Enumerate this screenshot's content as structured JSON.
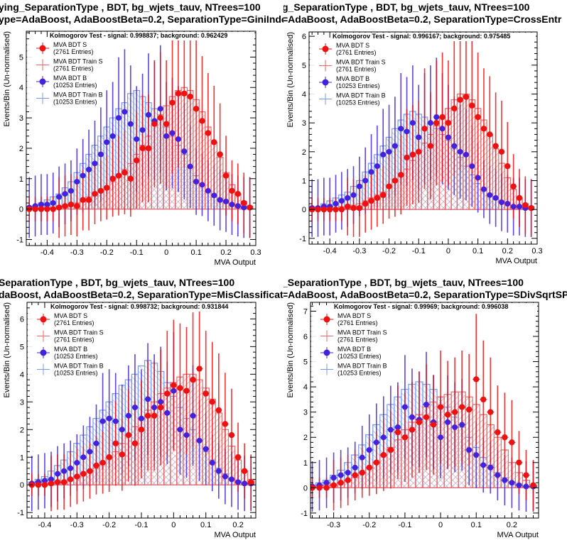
{
  "colors": {
    "signal": "#ee1111",
    "signal_train": "#ee6666",
    "background": "#4422dd",
    "background_train": "#7799ee",
    "overlap": "#8822aa"
  },
  "legend": [
    {
      "label": "MVA BDT S",
      "entries": "(2761 Entries)",
      "kind": "sig"
    },
    {
      "label": "MVA BDT Train S",
      "entries": "(2761 Entries)",
      "kind": "sigtrain"
    },
    {
      "label": "MVA BDT B",
      "entries": "(10253 Entries)",
      "kind": "bkg"
    },
    {
      "label": "MVA BDT Train B",
      "entries": "(10253 Entries)",
      "kind": "bkgtrain"
    }
  ],
  "panels": [
    {
      "title1": "ying_SeparationType ,  BDT, bg_wjets_tauv, NTrees=100",
      "title2": "ype=AdaBoost, AdaBoostBeta=0.2, SeparationType=GiniInde",
      "ks": "Kolmogorov Test - signal: 0.998837; background: 0.962429",
      "xlabel": "MVA Output",
      "ylabel": "Events/Bin (Un-normalised)"
    },
    {
      "title1": "g_SeparationType ,  BDT, bg_wjets_tauv, NTrees=100",
      "title2": "=AdaBoost, AdaBoostBeta=0.2, SeparationType=CrossEntr",
      "ks": "Kolmogorov Test - signal: 0.996167; background: 0.975485",
      "xlabel": "MVA Output",
      "ylabel": "Events/Bin (Un-normalised)"
    },
    {
      "title1": "SeparationType ,  BDT, bg_wjets_tauv, NTrees=100",
      "title2": "daBoost, AdaBoostBeta=0.2, SeparationType=MisClassificati",
      "ks": "Kolmogorov Test - signal: 0.998732; background: 0.931844",
      "xlabel": "MVA Output",
      "ylabel": "Events/Bin (Un-normalised)"
    },
    {
      "title1": "_SeparationType ,  BDT, bg_wjets_tauv, NTrees=100",
      "title2": "=AdaBoost, AdaBoostBeta=0.2, SeparationType=SDivSqrtSP",
      "ks": "Kolmogorov Test - signal: 0.99969; background: 0.996038",
      "xlabel": "MVA Output",
      "ylabel": "Events/Bin (Un-normalised)"
    }
  ],
  "chart_data": [
    {
      "type": "histogram",
      "xlabel": "MVA Output",
      "ylabel": "Events/Bin (Un-normalised)",
      "xlim": [
        -0.47,
        0.3
      ],
      "ylim": [
        -1.2,
        5.85
      ],
      "xticks": [
        -0.4,
        -0.3,
        -0.2,
        -0.1,
        0,
        0.1,
        0.2,
        0.3
      ],
      "yticks": [
        -1,
        0,
        1,
        2,
        3,
        4,
        5
      ],
      "x": [
        -0.46,
        -0.44,
        -0.42,
        -0.4,
        -0.38,
        -0.36,
        -0.34,
        -0.32,
        -0.3,
        -0.28,
        -0.26,
        -0.24,
        -0.22,
        -0.2,
        -0.18,
        -0.16,
        -0.14,
        -0.12,
        -0.1,
        -0.08,
        -0.06,
        -0.04,
        -0.02,
        0.0,
        0.02,
        0.04,
        0.06,
        0.08,
        0.1,
        0.12,
        0.14,
        0.16,
        0.18,
        0.2,
        0.22,
        0.24,
        0.26,
        0.28
      ],
      "series": [
        {
          "name": "MVA BDT S",
          "values": [
            0,
            0,
            0,
            0,
            0,
            0.05,
            0.1,
            0.15,
            0.1,
            0.3,
            0.3,
            0.5,
            0.6,
            0.7,
            1.0,
            1.1,
            1.2,
            1.0,
            1.6,
            2.0,
            2.0,
            2.8,
            3.0,
            2.8,
            3.5,
            3.8,
            3.8,
            3.7,
            3.3,
            2.9,
            2.5,
            2.2,
            1.8,
            1.1,
            0.6,
            0.5,
            0.2,
            0.05
          ]
        },
        {
          "name": "MVA BDT Train S",
          "values": [
            0,
            0,
            0,
            0.05,
            0.05,
            0.1,
            0.1,
            0.15,
            0.2,
            0.3,
            0.4,
            0.5,
            0.6,
            0.7,
            0.9,
            1.1,
            1.3,
            1.5,
            1.8,
            2.1,
            2.4,
            2.8,
            3.1,
            3.4,
            3.7,
            3.9,
            4.0,
            3.9,
            3.6,
            3.2,
            2.7,
            2.2,
            1.7,
            1.2,
            0.8,
            0.5,
            0.25,
            0.1
          ]
        },
        {
          "name": "MVA BDT B",
          "values": [
            0.05,
            0.1,
            0.15,
            0.15,
            0.2,
            0.4,
            0.5,
            0.6,
            0.9,
            1.1,
            1.3,
            1.5,
            1.8,
            2.2,
            2.4,
            3.0,
            3.2,
            2.8,
            2.3,
            2.6,
            3.1,
            2.9,
            3.3,
            2.4,
            2.5,
            2.3,
            1.9,
            1.4,
            0.9,
            0.8,
            0.6,
            0.45,
            0.3,
            0.25,
            0.15,
            0.1,
            0.05,
            0.05
          ]
        },
        {
          "name": "MVA BDT Train B",
          "values": [
            0.05,
            0.1,
            0.2,
            0.3,
            0.4,
            0.5,
            0.7,
            0.9,
            1.2,
            1.5,
            1.8,
            2.1,
            2.4,
            2.7,
            3.0,
            3.3,
            3.5,
            3.8,
            3.9,
            3.7,
            3.5,
            3.3,
            3.0,
            2.7,
            2.4,
            2.1,
            1.8,
            1.4,
            1.1,
            0.8,
            0.6,
            0.4,
            0.3,
            0.2,
            0.15,
            0.1,
            0.05,
            0.03
          ]
        }
      ]
    },
    {
      "type": "histogram",
      "xlabel": "MVA Output",
      "ylabel": "Events/Bin (Un-normalised)",
      "xlim": [
        -0.47,
        0.3
      ],
      "ylim": [
        -1.2,
        6.15
      ],
      "xticks": [
        -0.4,
        -0.3,
        -0.2,
        -0.1,
        0,
        0.1,
        0.2,
        0.3
      ],
      "yticks": [
        -1,
        0,
        1,
        2,
        3,
        4,
        5,
        6
      ],
      "x": [
        -0.46,
        -0.44,
        -0.42,
        -0.4,
        -0.38,
        -0.36,
        -0.34,
        -0.32,
        -0.3,
        -0.28,
        -0.26,
        -0.24,
        -0.22,
        -0.2,
        -0.18,
        -0.16,
        -0.14,
        -0.12,
        -0.1,
        -0.08,
        -0.06,
        -0.04,
        -0.02,
        0.0,
        0.02,
        0.04,
        0.06,
        0.08,
        0.1,
        0.12,
        0.14,
        0.16,
        0.18,
        0.2,
        0.22,
        0.24,
        0.26,
        0.28
      ],
      "series": [
        {
          "name": "MVA BDT S",
          "values": [
            0,
            0,
            0,
            0,
            0,
            0,
            0.1,
            0.05,
            0.05,
            0.2,
            0.3,
            0.4,
            0.5,
            0.8,
            1.0,
            1.2,
            1.8,
            1.9,
            2.0,
            2.8,
            2.2,
            3.0,
            3.2,
            3.0,
            3.5,
            3.8,
            3.9,
            3.6,
            3.2,
            2.8,
            2.6,
            2.2,
            2.0,
            1.5,
            0.8,
            0.4,
            0.15,
            0.05
          ]
        },
        {
          "name": "MVA BDT Train S",
          "values": [
            0,
            0,
            0,
            0.05,
            0.05,
            0.1,
            0.1,
            0.15,
            0.2,
            0.3,
            0.4,
            0.5,
            0.6,
            0.8,
            1.0,
            1.2,
            1.4,
            1.7,
            2.0,
            2.3,
            2.6,
            2.9,
            3.2,
            3.5,
            3.8,
            4.0,
            4.0,
            3.8,
            3.5,
            3.1,
            2.6,
            2.1,
            1.6,
            1.1,
            0.7,
            0.4,
            0.2,
            0.1
          ]
        },
        {
          "name": "MVA BDT B",
          "values": [
            0.05,
            0.05,
            0.1,
            0.1,
            0.2,
            0.3,
            0.4,
            0.5,
            0.8,
            1.0,
            1.3,
            1.5,
            1.9,
            2.0,
            2.2,
            2.8,
            2.7,
            3.0,
            2.5,
            2.8,
            3.0,
            3.2,
            2.8,
            2.5,
            2.2,
            2.0,
            1.9,
            1.5,
            1.1,
            0.7,
            0.5,
            0.4,
            0.25,
            0.2,
            0.1,
            0.1,
            0.05,
            0.05
          ]
        },
        {
          "name": "MVA BDT Train B",
          "values": [
            0.05,
            0.1,
            0.2,
            0.3,
            0.4,
            0.5,
            0.6,
            0.8,
            1.0,
            1.3,
            1.6,
            1.9,
            2.2,
            2.5,
            2.8,
            3.1,
            3.3,
            3.4,
            3.3,
            3.2,
            3.0,
            2.8,
            2.6,
            2.4,
            2.1,
            1.8,
            1.5,
            1.2,
            0.9,
            0.7,
            0.5,
            0.35,
            0.25,
            0.15,
            0.1,
            0.05,
            0.03,
            0.02
          ]
        }
      ]
    },
    {
      "type": "histogram",
      "xlabel": "MVA Output",
      "ylabel": "Events/Bin (Un-normalised)",
      "xlim": [
        -0.455,
        0.255
      ],
      "ylim": [
        -1.2,
        6.6
      ],
      "xticks": [
        -0.4,
        -0.3,
        -0.2,
        -0.1,
        0,
        0.1,
        0.2
      ],
      "yticks": [
        -1,
        0,
        1,
        2,
        3,
        4,
        5,
        6
      ],
      "x": [
        -0.44,
        -0.42,
        -0.4,
        -0.38,
        -0.36,
        -0.34,
        -0.32,
        -0.3,
        -0.28,
        -0.26,
        -0.24,
        -0.22,
        -0.2,
        -0.18,
        -0.16,
        -0.14,
        -0.12,
        -0.1,
        -0.08,
        -0.06,
        -0.04,
        -0.02,
        0.0,
        0.02,
        0.04,
        0.06,
        0.08,
        0.1,
        0.12,
        0.14,
        0.16,
        0.18,
        0.2,
        0.22,
        0.24
      ],
      "series": [
        {
          "name": "MVA BDT S",
          "values": [
            0,
            0,
            0,
            0.05,
            0.1,
            0.1,
            0.2,
            0.3,
            0.4,
            0.5,
            0.7,
            0.8,
            1.0,
            1.5,
            1.1,
            1.8,
            1.5,
            2.0,
            2.5,
            2.5,
            2.8,
            3.3,
            3.6,
            3.5,
            3.4,
            3.8,
            4.2,
            3.3,
            3.0,
            2.7,
            2.2,
            1.8,
            1.0,
            0.5,
            0.1
          ]
        },
        {
          "name": "MVA BDT Train S",
          "values": [
            0,
            0,
            0.05,
            0.05,
            0.1,
            0.1,
            0.2,
            0.3,
            0.4,
            0.5,
            0.6,
            0.8,
            1.0,
            1.2,
            1.5,
            1.8,
            2.1,
            2.4,
            2.7,
            3.0,
            3.3,
            3.5,
            3.7,
            3.9,
            4.0,
            4.0,
            3.8,
            3.5,
            3.1,
            2.6,
            2.0,
            1.4,
            0.9,
            0.5,
            0.2
          ]
        },
        {
          "name": "MVA BDT B",
          "values": [
            0.05,
            0.1,
            0.15,
            0.2,
            0.4,
            0.5,
            0.6,
            0.8,
            1.0,
            1.2,
            1.5,
            2.3,
            2.4,
            2.3,
            2.0,
            2.5,
            2.8,
            2.4,
            3.1,
            2.8,
            3.0,
            2.6,
            3.4,
            2.0,
            1.8,
            2.5,
            1.6,
            1.3,
            0.8,
            0.5,
            0.3,
            0.2,
            0.1,
            0.05,
            0.05
          ]
        },
        {
          "name": "MVA BDT Train B",
          "values": [
            0.1,
            0.2,
            0.3,
            0.5,
            0.7,
            0.9,
            1.2,
            1.5,
            1.8,
            2.1,
            2.4,
            2.7,
            3.0,
            3.3,
            3.6,
            3.8,
            4.0,
            4.3,
            4.5,
            4.4,
            4.1,
            3.7,
            3.2,
            2.8,
            2.4,
            2.0,
            1.6,
            1.2,
            0.9,
            0.6,
            0.4,
            0.25,
            0.15,
            0.08,
            0.04
          ]
        }
      ]
    },
    {
      "type": "histogram",
      "xlabel": "MVA Output",
      "ylabel": "Events/Bin (Un-normalised)",
      "xlim": [
        -0.365,
        0.275
      ],
      "ylim": [
        -1.2,
        7.35
      ],
      "xticks": [
        -0.3,
        -0.2,
        -0.1,
        0,
        0.1,
        0.2
      ],
      "yticks": [
        -1,
        0,
        1,
        2,
        3,
        4,
        5,
        6,
        7
      ],
      "x": [
        -0.36,
        -0.34,
        -0.32,
        -0.3,
        -0.28,
        -0.26,
        -0.24,
        -0.22,
        -0.2,
        -0.18,
        -0.16,
        -0.14,
        -0.12,
        -0.1,
        -0.08,
        -0.06,
        -0.04,
        -0.02,
        0.0,
        0.02,
        0.04,
        0.06,
        0.08,
        0.1,
        0.12,
        0.14,
        0.16,
        0.18,
        0.2,
        0.22,
        0.24,
        0.26
      ],
      "series": [
        {
          "name": "MVA BDT S",
          "values": [
            0,
            0,
            0,
            0.1,
            0.2,
            0.3,
            0.5,
            0.6,
            0.8,
            1.0,
            1.3,
            1.5,
            2.2,
            2.0,
            2.3,
            2.6,
            2.8,
            2.5,
            3.2,
            2.9,
            3.0,
            3.2,
            3.1,
            4.3,
            3.5,
            3.0,
            2.2,
            2.0,
            1.8,
            1.0,
            0.5,
            0.1
          ]
        },
        {
          "name": "MVA BDT Train S",
          "values": [
            0,
            0.05,
            0.1,
            0.15,
            0.2,
            0.3,
            0.4,
            0.6,
            0.8,
            1.0,
            1.3,
            1.6,
            1.9,
            2.3,
            2.6,
            2.9,
            3.2,
            3.4,
            3.6,
            3.7,
            3.8,
            3.8,
            3.6,
            3.3,
            2.9,
            2.5,
            2.0,
            1.5,
            1.0,
            0.6,
            0.3,
            0.1
          ]
        },
        {
          "name": "MVA BDT B",
          "values": [
            0.05,
            0.1,
            0.2,
            0.4,
            0.5,
            0.6,
            0.8,
            1.2,
            1.5,
            1.8,
            2.0,
            2.3,
            2.4,
            3.2,
            2.8,
            2.7,
            3.3,
            2.6,
            2.0,
            2.6,
            2.4,
            2.5,
            1.5,
            1.3,
            0.9,
            0.8,
            0.5,
            0.3,
            0.2,
            0.1,
            0.05,
            0.05
          ]
        },
        {
          "name": "MVA BDT Train B",
          "values": [
            0.1,
            0.2,
            0.3,
            0.5,
            0.7,
            1.0,
            1.3,
            1.7,
            2.1,
            2.5,
            2.9,
            3.3,
            3.6,
            3.9,
            4.1,
            4.2,
            4.1,
            3.9,
            3.6,
            3.2,
            2.8,
            2.4,
            2.0,
            1.6,
            1.2,
            0.9,
            0.6,
            0.4,
            0.25,
            0.15,
            0.08,
            0.04
          ]
        }
      ]
    }
  ]
}
